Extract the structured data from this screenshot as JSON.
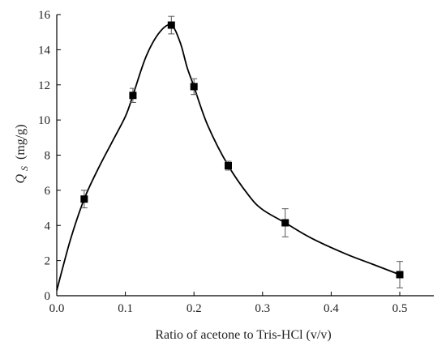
{
  "chart_data": {
    "type": "scatter",
    "xlabel": "Ratio of acetone to Tris-HCl (v/v)",
    "ylabel_symbol": "Q",
    "ylabel_subscript": "S",
    "ylabel_unit": "(mg/g)",
    "xlim": [
      0.0,
      0.5
    ],
    "ylim": [
      0,
      16
    ],
    "xticks": [
      "0.0",
      "0.1",
      "0.2",
      "0.3",
      "0.4",
      "0.5"
    ],
    "yticks": [
      "0",
      "2",
      "4",
      "6",
      "8",
      "10",
      "12",
      "14",
      "16"
    ],
    "grid": false,
    "series": [
      {
        "x": [
          0.04,
          0.111,
          0.167,
          0.2,
          0.25,
          0.333,
          0.5
        ],
        "y": [
          5.5,
          11.4,
          15.4,
          11.9,
          7.4,
          4.15,
          1.2
        ],
        "yerr": [
          0.5,
          0.4,
          0.5,
          0.45,
          0.25,
          0.8,
          0.75
        ]
      }
    ],
    "fit_curve": {
      "x": [
        0.0,
        0.02,
        0.04,
        0.06,
        0.08,
        0.1,
        0.111,
        0.13,
        0.15,
        0.167,
        0.18,
        0.19,
        0.2,
        0.22,
        0.25,
        0.28,
        0.3,
        0.333,
        0.37,
        0.42,
        0.46,
        0.5
      ],
      "y": [
        0.3,
        3.2,
        5.5,
        7.2,
        8.7,
        10.2,
        11.4,
        13.6,
        15.0,
        15.4,
        14.4,
        13.0,
        11.9,
        9.7,
        7.4,
        5.7,
        4.9,
        4.15,
        3.3,
        2.4,
        1.8,
        1.2
      ]
    }
  }
}
